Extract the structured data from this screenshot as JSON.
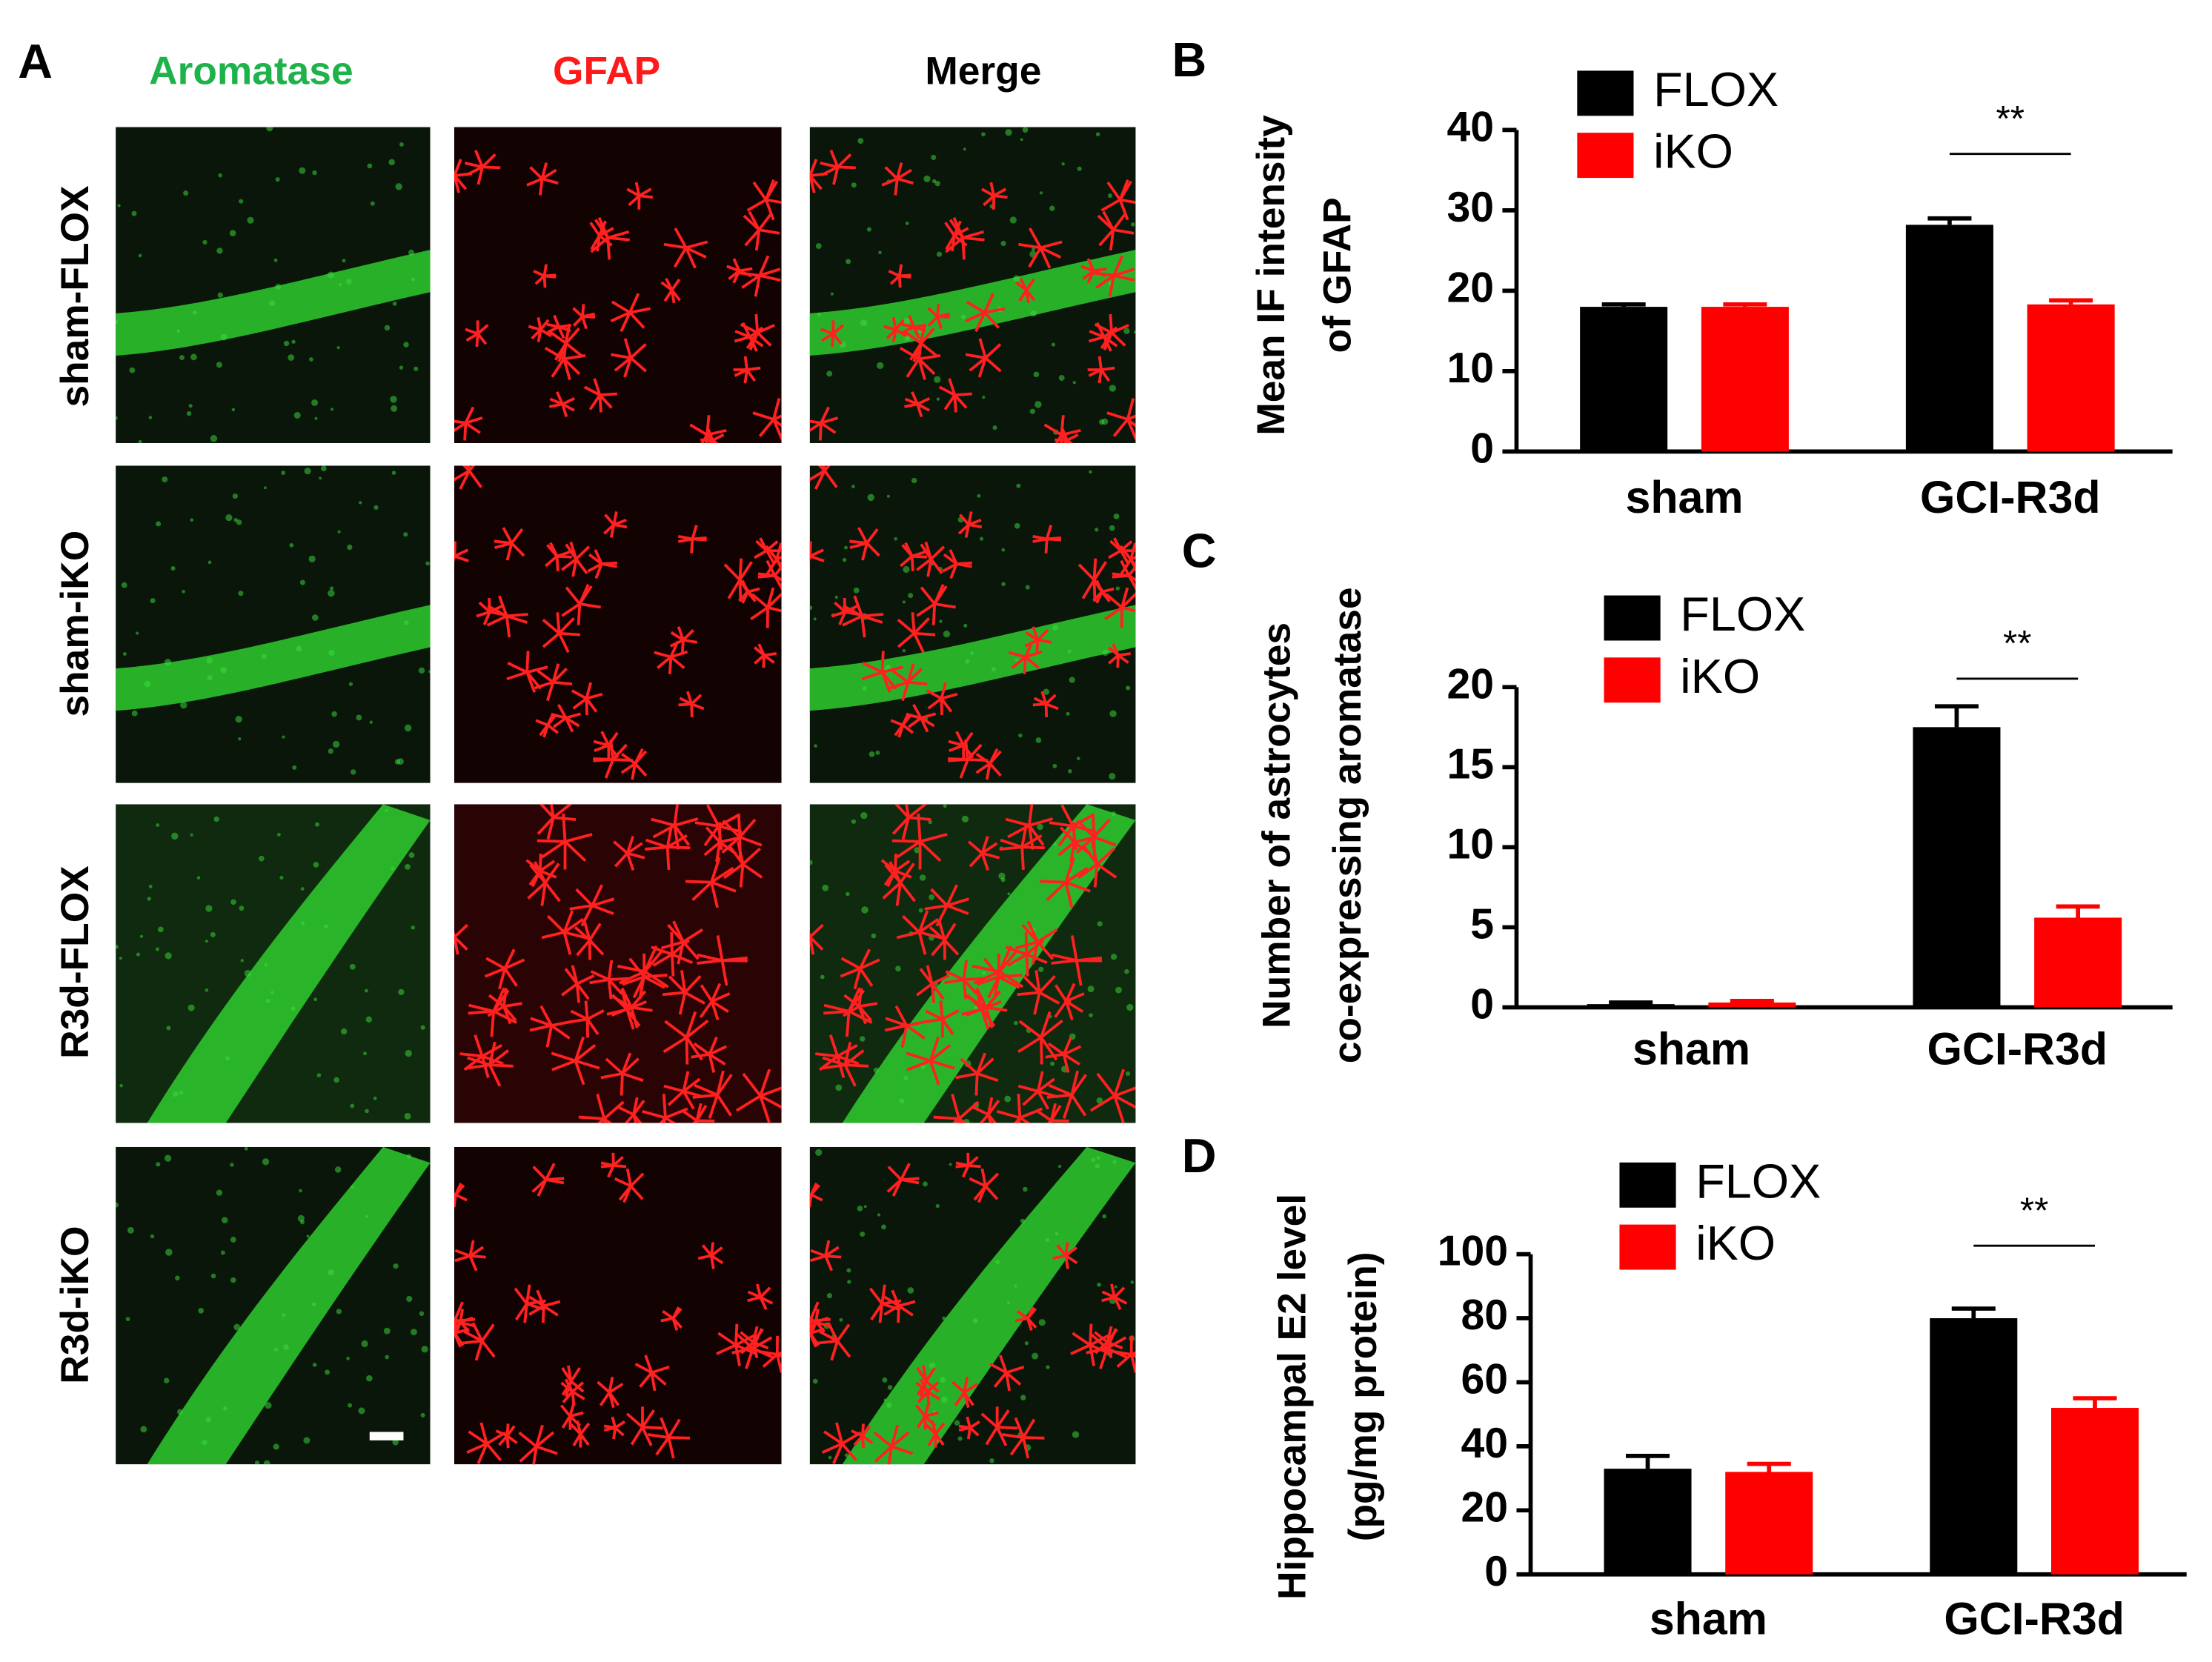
{
  "panel_a": {
    "panel_label": "A",
    "columns": [
      "Aromatase",
      "GFAP",
      "Merge"
    ],
    "rows": [
      "sham-FLOX",
      "sham-iKO",
      "R3d-FLOX",
      "R3d-iKO"
    ]
  },
  "chart_data": [
    {
      "type": "bar",
      "panel_label": "B",
      "ylabel": [
        "Mean IF intensity",
        "of GFAP"
      ],
      "categories": [
        "sham",
        "GCI-R3d"
      ],
      "series": [
        {
          "name": "FLOX",
          "color": "#000000",
          "values": [
            18,
            28.2
          ],
          "errors": [
            0.3,
            0.8
          ]
        },
        {
          "name": "iKO",
          "color": "#ff0000",
          "values": [
            18,
            18.3
          ],
          "errors": [
            0.3,
            0.5
          ]
        }
      ],
      "ylim": [
        0,
        40
      ],
      "yticks": [
        0,
        10,
        20,
        30,
        40
      ],
      "annotation": "**"
    },
    {
      "type": "bar",
      "panel_label": "C",
      "ylabel": [
        "Number of astrocytes",
        "co-expressing aromatase"
      ],
      "categories": [
        "sham",
        "GCI-R3d"
      ],
      "series": [
        {
          "name": "FLOX",
          "color": "#000000",
          "values": [
            0.2,
            17.5
          ],
          "errors": [
            0.1,
            1.3
          ]
        },
        {
          "name": "iKO",
          "color": "#ff0000",
          "values": [
            0.3,
            5.6
          ],
          "errors": [
            0.1,
            0.7
          ]
        }
      ],
      "ylim": [
        0,
        20
      ],
      "yticks": [
        0,
        5,
        10,
        15,
        20
      ],
      "annotation": "**"
    },
    {
      "type": "bar",
      "panel_label": "D",
      "ylabel": [
        "Hippocampal E2 level",
        "(pg/mg protein)"
      ],
      "categories": [
        "sham",
        "GCI-R3d"
      ],
      "series": [
        {
          "name": "FLOX",
          "color": "#000000",
          "values": [
            33,
            80
          ],
          "errors": [
            4,
            3
          ]
        },
        {
          "name": "iKO",
          "color": "#ff0000",
          "values": [
            32,
            52
          ],
          "errors": [
            2.5,
            3
          ]
        }
      ],
      "ylim": [
        0,
        100
      ],
      "yticks": [
        0,
        20,
        40,
        60,
        80,
        100
      ],
      "annotation": "**"
    }
  ]
}
